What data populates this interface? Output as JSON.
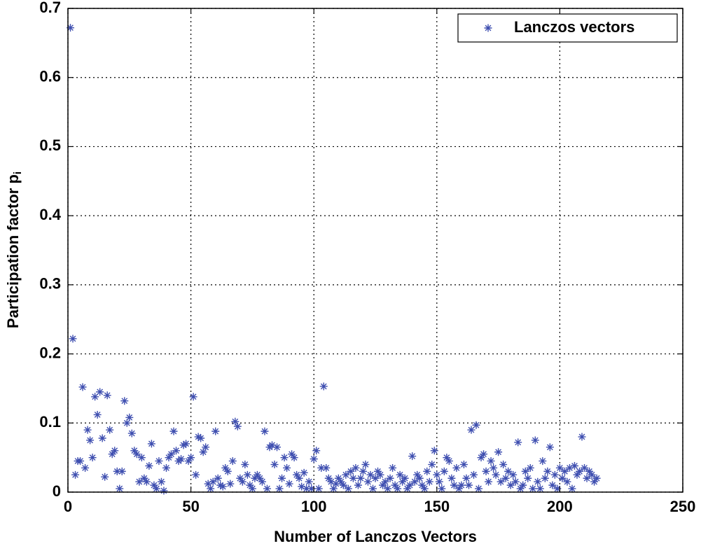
{
  "chart_data": {
    "type": "scatter",
    "xlabel": "Number of Lanczos Vectors",
    "ylabel": "Participation factor p",
    "ylabel_subscript": "i",
    "xlim": [
      0,
      250
    ],
    "xticks": [
      0,
      50,
      100,
      150,
      200,
      250
    ],
    "ylim": [
      0,
      0.7
    ],
    "yticks": [
      0,
      0.1,
      0.2,
      0.3,
      0.4,
      0.5,
      0.6,
      0.7
    ],
    "grid": true,
    "legend": "upper right",
    "series": [
      {
        "name": "Lanczos vectors",
        "color": "#3f4fb0",
        "x": [
          1,
          2,
          3,
          4,
          5,
          6,
          7,
          8,
          9,
          10,
          11,
          12,
          13,
          14,
          15,
          16,
          17,
          18,
          19,
          20,
          21,
          22,
          23,
          24,
          25,
          26,
          27,
          28,
          29,
          30,
          31,
          32,
          33,
          34,
          35,
          36,
          37,
          38,
          39,
          40,
          41,
          42,
          43,
          44,
          45,
          46,
          47,
          48,
          49,
          50,
          51,
          52,
          53,
          54,
          55,
          56,
          57,
          58,
          59,
          60,
          61,
          62,
          63,
          64,
          65,
          66,
          67,
          68,
          69,
          70,
          71,
          72,
          73,
          74,
          75,
          76,
          77,
          78,
          79,
          80,
          81,
          82,
          83,
          84,
          85,
          86,
          87,
          88,
          89,
          90,
          91,
          92,
          93,
          94,
          95,
          96,
          97,
          98,
          99,
          100,
          101,
          102,
          103,
          104,
          105,
          106,
          107,
          108,
          109,
          110,
          111,
          112,
          113,
          114,
          115,
          116,
          117,
          118,
          119,
          120,
          121,
          122,
          123,
          124,
          125,
          126,
          127,
          128,
          129,
          130,
          131,
          132,
          133,
          134,
          135,
          136,
          137,
          138,
          139,
          140,
          141,
          142,
          143,
          144,
          145,
          146,
          147,
          148,
          149,
          150,
          151,
          152,
          153,
          154,
          155,
          156,
          157,
          158,
          159,
          160,
          161,
          162,
          163,
          164,
          165,
          166,
          167,
          168,
          169,
          170,
          171,
          172,
          173,
          174,
          175,
          176,
          177,
          178,
          179,
          180,
          181,
          182,
          183,
          184,
          185,
          186,
          187,
          188,
          189,
          190,
          191,
          192,
          193,
          194,
          195,
          196,
          197,
          198,
          199,
          200,
          201,
          202,
          203,
          204,
          205,
          206,
          207,
          208,
          209,
          210,
          211,
          212,
          213,
          214,
          215
        ],
        "values": [
          0.672,
          0.222,
          0.025,
          0.045,
          0.045,
          0.152,
          0.035,
          0.09,
          0.075,
          0.05,
          0.138,
          0.112,
          0.145,
          0.078,
          0.022,
          0.14,
          0.09,
          0.055,
          0.06,
          0.03,
          0.005,
          0.03,
          0.132,
          0.1,
          0.108,
          0.085,
          0.06,
          0.055,
          0.015,
          0.05,
          0.02,
          0.015,
          0.038,
          0.07,
          0.01,
          0.005,
          0.045,
          0.015,
          0.002,
          0.035,
          0.05,
          0.055,
          0.088,
          0.06,
          0.045,
          0.048,
          0.068,
          0.07,
          0.045,
          0.05,
          0.138,
          0.025,
          0.08,
          0.078,
          0.058,
          0.065,
          0.012,
          0.005,
          0.015,
          0.088,
          0.02,
          0.01,
          0.008,
          0.035,
          0.03,
          0.012,
          0.045,
          0.102,
          0.095,
          0.02,
          0.015,
          0.04,
          0.025,
          0.01,
          0.005,
          0.02,
          0.025,
          0.02,
          0.015,
          0.088,
          0.005,
          0.065,
          0.068,
          0.04,
          0.065,
          0.005,
          0.02,
          0.05,
          0.035,
          0.012,
          0.055,
          0.05,
          0.025,
          0.02,
          0.008,
          0.028,
          0.005,
          0.015,
          0.005,
          0.048,
          0.06,
          0.005,
          0.035,
          0.153,
          0.035,
          0.02,
          0.015,
          0.005,
          0.012,
          0.02,
          0.015,
          0.01,
          0.025,
          0.005,
          0.03,
          0.02,
          0.035,
          0.01,
          0.02,
          0.03,
          0.04,
          0.015,
          0.025,
          0.005,
          0.02,
          0.03,
          0.025,
          0.01,
          0.015,
          0.005,
          0.02,
          0.035,
          0.01,
          0.005,
          0.025,
          0.015,
          0.02,
          0.005,
          0.01,
          0.052,
          0.015,
          0.025,
          0.02,
          0.01,
          0.005,
          0.03,
          0.015,
          0.04,
          0.06,
          0.025,
          0.015,
          0.005,
          0.03,
          0.05,
          0.045,
          0.02,
          0.01,
          0.035,
          0.005,
          0.01,
          0.04,
          0.02,
          0.01,
          0.09,
          0.025,
          0.097,
          0.005,
          0.05,
          0.055,
          0.03,
          0.015,
          0.045,
          0.035,
          0.025,
          0.058,
          0.015,
          0.04,
          0.02,
          0.03,
          0.01,
          0.025,
          0.015,
          0.072,
          0.005,
          0.01,
          0.03,
          0.02,
          0.035,
          0.005,
          0.075,
          0.015,
          0.005,
          0.045,
          0.02,
          0.03,
          0.065,
          0.01,
          0.025,
          0.005,
          0.035,
          0.02,
          0.03,
          0.015,
          0.035,
          0.005,
          0.038,
          0.025,
          0.03,
          0.08,
          0.035,
          0.02,
          0.03,
          0.025,
          0.015,
          0.02
        ]
      }
    ]
  }
}
